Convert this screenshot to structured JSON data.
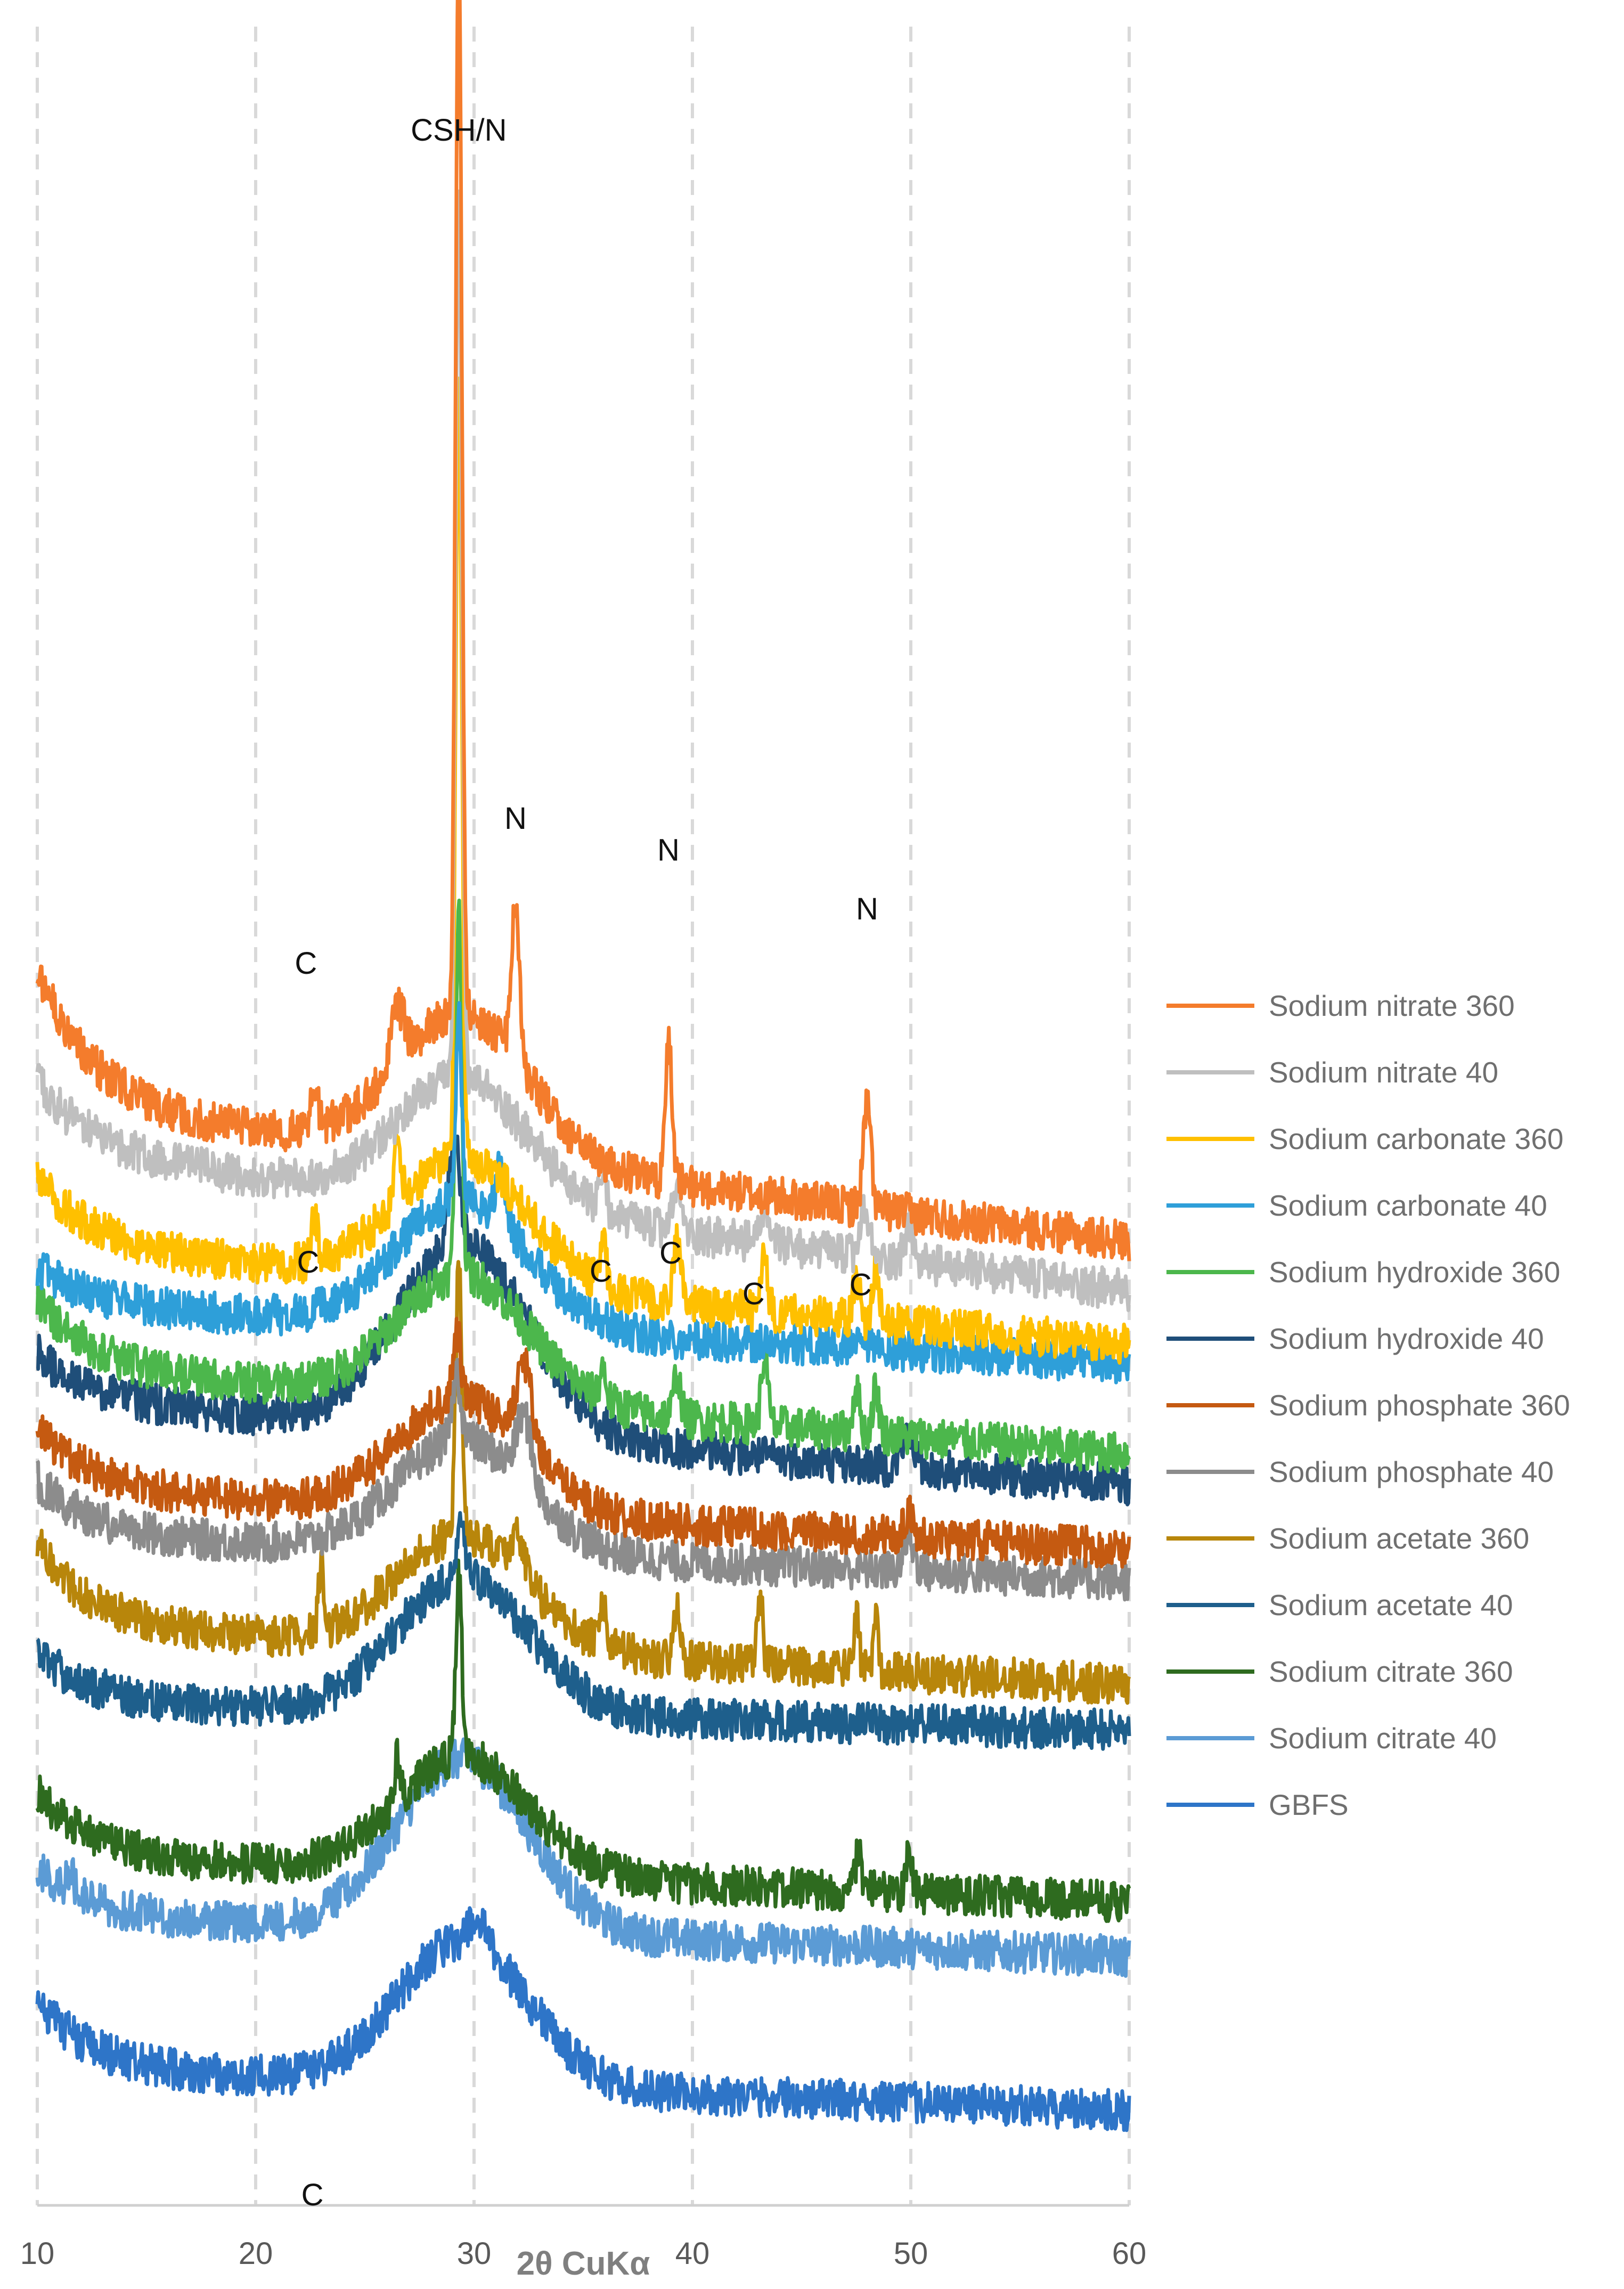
{
  "chart_data": {
    "type": "line",
    "title": "",
    "xlabel": "2θ CuKα",
    "ylabel": "",
    "xlim": [
      10,
      60
    ],
    "xticks": [
      10,
      20,
      30,
      40,
      50,
      60
    ],
    "grid": "vertical dashed",
    "legend_position": "right",
    "series": [
      {
        "name": "Sodium nitrate 360",
        "color": "#f47c2c",
        "baseline": 12.3,
        "tail": 9.3,
        "start": 3.0,
        "broad_amp": 3.2,
        "peaks": [
          [
            29.3,
            24.0,
            0.14
          ],
          [
            31.9,
            3.3,
            0.2
          ],
          [
            38.9,
            3.3,
            0.15
          ],
          [
            48.0,
            2.3,
            0.18
          ],
          [
            22.7,
            1.0,
            0.15
          ],
          [
            26.5,
            1.2,
            0.3
          ]
        ]
      },
      {
        "name": "Sodium nitrate 40",
        "color": "#bfbfbf",
        "baseline": 11.3,
        "tail": 8.2,
        "start": 1.5,
        "broad_amp": 2.8,
        "peaks": [
          [
            29.3,
            20.0,
            0.14
          ],
          [
            35.9,
            0.8,
            0.15
          ],
          [
            39.3,
            1.0,
            0.2
          ],
          [
            43.3,
            0.8,
            0.2
          ],
          [
            47.9,
            1.0,
            0.2
          ],
          [
            49.9,
            0.8,
            0.2
          ]
        ]
      },
      {
        "name": "Sodium carbonate 360",
        "color": "#ffc000",
        "baseline": 9.2,
        "tail": 7.0,
        "start": 1.5,
        "broad_amp": 2.8,
        "peaks": [
          [
            29.3,
            17.0,
            0.14
          ],
          [
            22.7,
            1.0,
            0.15
          ],
          [
            26.5,
            1.5,
            0.15
          ],
          [
            35.9,
            1.0,
            0.15
          ],
          [
            39.3,
            1.5,
            0.15
          ],
          [
            43.3,
            1.2,
            0.15
          ],
          [
            47.5,
            1.0,
            0.15
          ],
          [
            48.4,
            1.3,
            0.15
          ]
        ]
      },
      {
        "name": "Sodium carbonate 40",
        "color": "#2e9fd9",
        "baseline": 7.9,
        "tail": 6.6,
        "start": 0.8,
        "broad_amp": 2.8,
        "peaks": [
          [
            29.3,
            4.0,
            0.14
          ],
          [
            31.2,
            1.2,
            0.2
          ]
        ]
      },
      {
        "name": "Sodium hydroxide 360",
        "color": "#4cb74c",
        "baseline": 6.5,
        "tail": 4.6,
        "start": 1.5,
        "broad_amp": 2.8,
        "peaks": [
          [
            29.3,
            8.0,
            0.14
          ],
          [
            39.3,
            1.0,
            0.15
          ],
          [
            43.3,
            1.5,
            0.15
          ],
          [
            47.5,
            1.0,
            0.15
          ],
          [
            48.4,
            1.0,
            0.15
          ],
          [
            35.9,
            0.7,
            0.15
          ]
        ]
      },
      {
        "name": "Sodium hydroxide 40",
        "color": "#1f4e79",
        "baseline": 5.8,
        "tail": 3.9,
        "start": 1.0,
        "broad_amp": 4.2,
        "peaks": [
          [
            29.1,
            2.5,
            0.25
          ],
          [
            49.9,
            0.7,
            0.3
          ]
        ]
      },
      {
        "name": "Sodium phosphate 360",
        "color": "#c55a11",
        "baseline": 3.8,
        "tail": 2.5,
        "start": 1.4,
        "broad_amp": 2.5,
        "peaks": [
          [
            29.2,
            1.5,
            0.2
          ],
          [
            32.3,
            1.8,
            0.35
          ],
          [
            49.9,
            0.5,
            0.25
          ]
        ]
      },
      {
        "name": "Sodium phosphate 40",
        "color": "#8c8c8c",
        "baseline": 2.8,
        "tail": 1.8,
        "start": 1.2,
        "broad_amp": 2.5,
        "peaks": [
          [
            29.2,
            1.5,
            0.2
          ],
          [
            32.3,
            1.5,
            0.35
          ],
          [
            49.9,
            0.7,
            0.25
          ]
        ]
      },
      {
        "name": "Sodium acetate 360",
        "color": "#b8860b",
        "baseline": 0.8,
        "tail": -0.5,
        "start": 1.8,
        "broad_amp": 2.5,
        "peaks": [
          [
            29.3,
            6.0,
            0.14
          ],
          [
            23.0,
            1.5,
            0.12
          ],
          [
            35.9,
            1.0,
            0.12
          ],
          [
            39.3,
            1.4,
            0.12
          ],
          [
            43.1,
            1.5,
            0.12
          ],
          [
            47.5,
            1.2,
            0.12
          ],
          [
            48.4,
            1.2,
            0.12
          ],
          [
            32.0,
            0.8,
            0.3
          ]
        ]
      },
      {
        "name": "Sodium acetate 40",
        "color": "#1e5f8c",
        "baseline": -0.9,
        "tail": -1.5,
        "start": 1.1,
        "broad_amp": 3.0,
        "peaks": [
          [
            29.4,
            1.0,
            0.2
          ]
        ]
      },
      {
        "name": "Sodium citrate 360",
        "color": "#2e6b1f",
        "baseline": -4.3,
        "tail": -5.3,
        "start": 1.4,
        "broad_amp": 2.6,
        "peaks": [
          [
            29.3,
            4.0,
            0.14
          ],
          [
            26.5,
            1.0,
            0.12
          ],
          [
            47.6,
            0.8,
            0.15
          ],
          [
            49.9,
            0.8,
            0.15
          ]
        ]
      },
      {
        "name": "Sodium citrate 40",
        "color": "#5b9bd5",
        "baseline": -5.6,
        "tail": -6.5,
        "start": 1.0,
        "broad_amp": 3.8,
        "peaks": [
          [
            11.5,
            0.5,
            0.15
          ]
        ]
      },
      {
        "name": "GBFS",
        "color": "#2e75c8",
        "baseline": -9.0,
        "tail": -9.9,
        "start": 1.5,
        "broad_amp": 3.2,
        "peaks": [
          [
            30.2,
            0.5,
            0.4
          ]
        ]
      }
    ],
    "annotations": [
      {
        "text": "CSH/N",
        "x": 29.3,
        "y": 33.6
      },
      {
        "text": "N",
        "x": 31.9,
        "y": 18.4
      },
      {
        "text": "N",
        "x": 38.9,
        "y": 17.7
      },
      {
        "text": "N",
        "x": 48.0,
        "y": 16.4
      },
      {
        "text": "C",
        "x": 22.3,
        "y": 15.2
      },
      {
        "text": "C",
        "x": 22.4,
        "y": 8.6
      },
      {
        "text": "C",
        "x": 35.8,
        "y": 8.4
      },
      {
        "text": "C",
        "x": 39.0,
        "y": 8.8
      },
      {
        "text": "C",
        "x": 42.8,
        "y": 7.9
      },
      {
        "text": "C",
        "x": 47.7,
        "y": 8.1
      },
      {
        "text": "C",
        "x": 22.6,
        "y": -12.0
      }
    ]
  }
}
